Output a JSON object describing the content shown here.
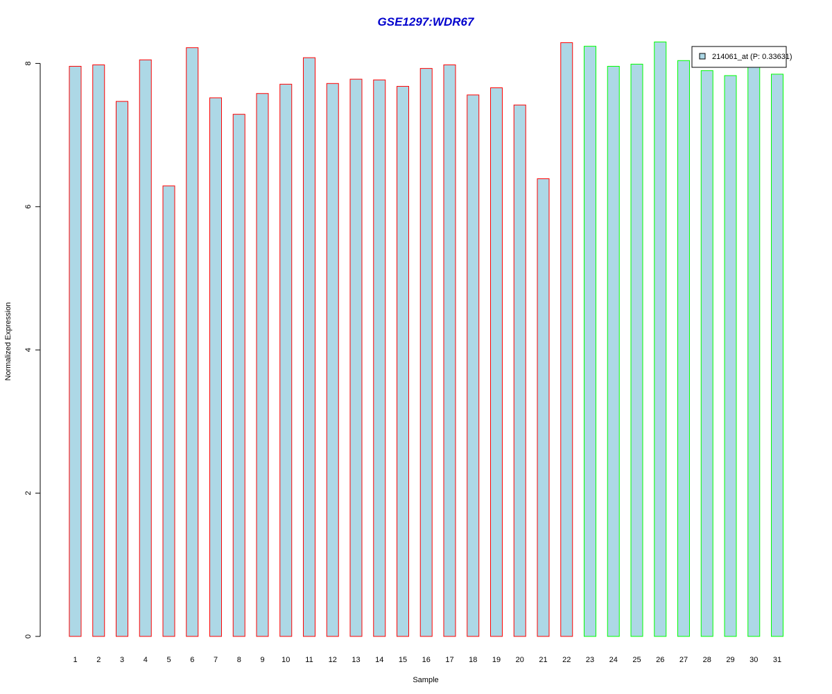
{
  "chart_data": {
    "type": "bar",
    "title": "GSE1297:WDR67",
    "xlabel": "Sample",
    "ylabel": "Normalized Expression",
    "ylim": [
      0,
      8.2
    ],
    "yticks": [
      0,
      2,
      4,
      6,
      8
    ],
    "categories": [
      "1",
      "2",
      "3",
      "4",
      "5",
      "6",
      "7",
      "8",
      "9",
      "10",
      "11",
      "12",
      "13",
      "14",
      "15",
      "16",
      "17",
      "18",
      "19",
      "20",
      "21",
      "22",
      "23",
      "24",
      "25",
      "26",
      "27",
      "28",
      "29",
      "30",
      "31"
    ],
    "values": [
      7.96,
      7.98,
      7.47,
      8.05,
      6.29,
      8.22,
      7.52,
      7.29,
      7.58,
      7.71,
      8.08,
      7.72,
      7.78,
      7.77,
      7.68,
      7.93,
      7.98,
      7.56,
      7.66,
      7.42,
      6.39,
      8.29,
      8.24,
      7.96,
      7.99,
      8.3,
      8.04,
      7.9,
      7.83,
      7.97,
      7.85
    ],
    "groups": [
      "red",
      "red",
      "red",
      "red",
      "red",
      "red",
      "red",
      "red",
      "red",
      "red",
      "red",
      "red",
      "red",
      "red",
      "red",
      "red",
      "red",
      "red",
      "red",
      "red",
      "red",
      "red",
      "green",
      "green",
      "green",
      "green",
      "green",
      "green",
      "green",
      "green",
      "green"
    ],
    "legend": {
      "label": "214061_at (P: 0.33631)",
      "position": "top-right"
    },
    "grid": false,
    "colors": {
      "fill": "#ADD8E6",
      "red_border": "#FF0000",
      "green_border": "#00FF00",
      "title": "#0000CD",
      "axis": "#000000"
    }
  }
}
